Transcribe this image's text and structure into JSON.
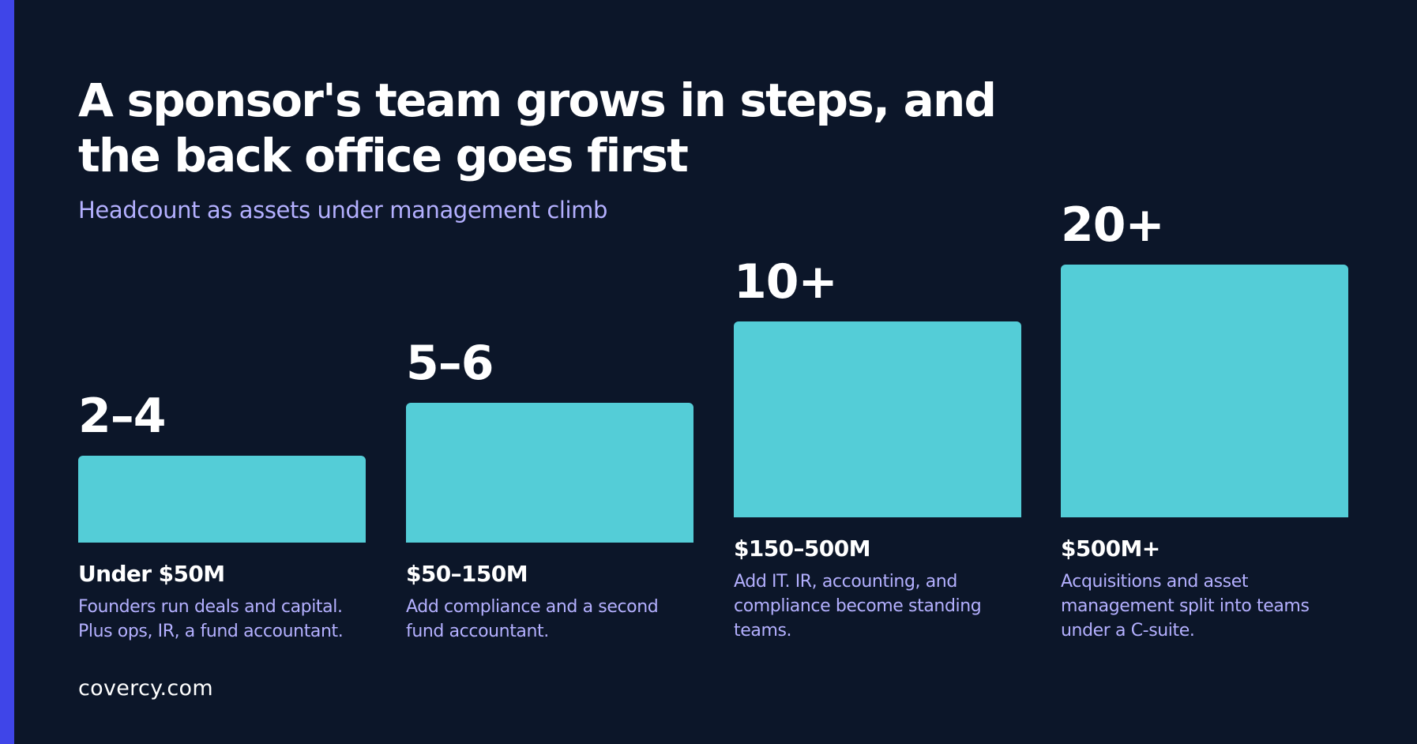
{
  "title": "A sponsor's team grows in steps, and the back office goes first",
  "subtitle": "Headcount as assets under management climb",
  "footer": "covercy.com",
  "colors": {
    "background": "#0c1629",
    "accent_stripe": "#3f45e8",
    "bar": "#54cdd7",
    "heading_text": "#ffffff",
    "secondary_text": "#b4b0ff"
  },
  "chart_data": {
    "type": "bar",
    "title": "A sponsor's team grows in steps, and the back office goes first",
    "subtitle": "Headcount as assets under management climb",
    "categories": [
      "Under $50M",
      "$50–150M",
      "$150–500M",
      "$500M+"
    ],
    "series": [
      {
        "values": [
          3,
          5.5,
          10,
          20
        ]
      }
    ],
    "data_labels": [
      "2–4",
      "5–6",
      "10+",
      "20+"
    ],
    "descriptions": [
      "Founders run deals and capital. Plus ops, IR, a fund accountant.",
      "Add compliance and a second fund accountant.",
      "Add IT. IR, accounting, and compliance become standing teams.",
      "Acquisitions and asset management split into teams under a C-suite."
    ],
    "xlabel": "",
    "ylabel": "",
    "grid": false,
    "legend": "none"
  }
}
